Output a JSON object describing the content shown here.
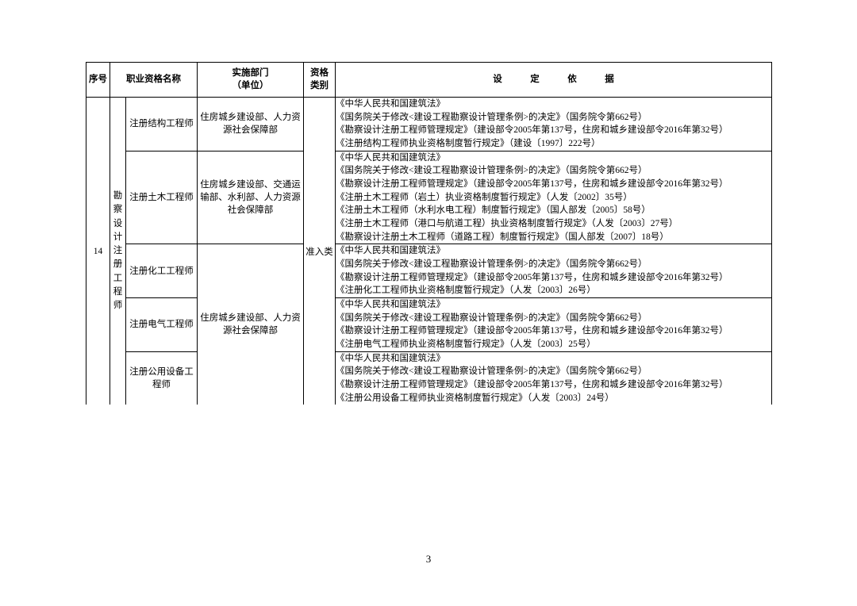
{
  "header": {
    "seq": "序号",
    "qualName": "职业资格名称",
    "dept": "实施部门\n（单位）",
    "type": "资格\n类别",
    "basis": "设　定　依　据"
  },
  "row": {
    "seq": "14",
    "categoryVertical": "勘察设计注册工程师",
    "type": "准入类",
    "items": [
      {
        "name": "注册结构工程师",
        "dept": "住房城乡建设部、人力资源社会保障部",
        "basis": [
          "《中华人民共和国建筑法》",
          "《国务院关于修改<建设工程勘察设计管理条例>的决定》（国务院令第662号）",
          "《勘察设计注册工程师管理规定》（建设部令2005年第137号，住房和城乡建设部令2016年第32号）",
          "《注册结构工程师执业资格制度暂行规定》（建设〔1997〕222号）"
        ]
      },
      {
        "name": "注册土木工程师",
        "dept": "住房城乡建设部、交通运输部、水利部、人力资源社会保障部",
        "basis": [
          "《中华人民共和国建筑法》",
          "《国务院关于修改<建设工程勘察设计管理条例>的决定》（国务院令第662号）",
          "《勘察设计注册工程师管理规定》（建设部令2005年第137号，住房和城乡建设部令2016年第32号）",
          "《注册土木工程师（岩土）执业资格制度暂行规定》（人发〔2002〕35号）",
          "《注册土木工程师（水利水电工程）制度暂行规定》（国人部发〔2005〕58号）",
          "《注册土木工程师（港口与航道工程）执业资格制度暂行规定》（人发〔2003〕27号）",
          "《勘察设计注册土木工程师（道路工程）制度暂行规定》（国人部发〔2007〕18号）"
        ]
      },
      {
        "name": "注册化工工程师",
        "dept": "",
        "basis": [
          "《中华人民共和国建筑法》",
          "《国务院关于修改<建设工程勘察设计管理条例>的决定》（国务院令第662号）",
          "《勘察设计注册工程师管理规定》（建设部令2005年第137号，住房和城乡建设部令2016年第32号）",
          "《注册化工工程师执业资格制度暂行规定》（人发〔2003〕26号）"
        ]
      },
      {
        "name": "注册电气工程师",
        "dept": "住房城乡建设部、人力资源社会保障部",
        "basis": [
          "《中华人民共和国建筑法》",
          "《国务院关于修改<建设工程勘察设计管理条例>的决定》（国务院令第662号）",
          "《勘察设计注册工程师管理规定》（建设部令2005年第137号，住房和城乡建设部令2016年第32号）",
          "《注册电气工程师执业资格制度暂行规定》（人发〔2003〕25号）"
        ]
      },
      {
        "name": "注册公用设备工程师",
        "dept": "",
        "basis": [
          "《中华人民共和国建筑法》",
          "《国务院关于修改<建设工程勘察设计管理条例>的决定》（国务院令第662号）",
          "《勘察设计注册工程师管理规定》（建设部令2005年第137号，住房和城乡建设部令2016年第32号）",
          "《注册公用设备工程师执业资格制度暂行规定》（人发〔2003〕24号）"
        ]
      }
    ]
  },
  "pageNumber": "3"
}
